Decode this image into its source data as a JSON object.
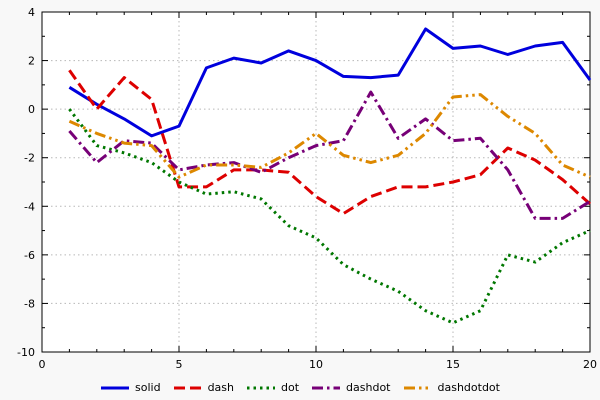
{
  "chart_data": {
    "type": "line",
    "title": "",
    "xlabel": "",
    "ylabel": "",
    "xlim": [
      0,
      20
    ],
    "ylim": [
      -10,
      4
    ],
    "x_ticks": [
      0,
      5,
      10,
      15,
      20
    ],
    "y_ticks": [
      4,
      2,
      0,
      -2,
      -4,
      -6,
      -8,
      -10
    ],
    "grid": true,
    "grid_color": "#b8b8b8",
    "plot_bg": "#ffffff",
    "figure_bg": "#f8f8f8",
    "border_color": "#000000",
    "legend_position": "bottom-center",
    "x": [
      1,
      2,
      3,
      4,
      5,
      6,
      7,
      8,
      9,
      10,
      11,
      12,
      13,
      14,
      15,
      16,
      17,
      18,
      19,
      20
    ],
    "series": [
      {
        "name": "solid",
        "color": "#0000dd",
        "dash": "solid",
        "values": [
          0.9,
          0.2,
          -0.4,
          -1.1,
          -0.7,
          1.7,
          2.1,
          1.9,
          2.4,
          2.0,
          1.35,
          1.3,
          1.4,
          3.3,
          2.5,
          2.6,
          2.25,
          2.6,
          2.75,
          1.2
        ]
      },
      {
        "name": "dash",
        "color": "#dd0000",
        "dash": "dash",
        "values": [
          1.6,
          0.0,
          1.3,
          0.4,
          -3.2,
          -3.2,
          -2.5,
          -2.5,
          -2.6,
          -3.6,
          -4.3,
          -3.6,
          -3.2,
          -3.2,
          -3.0,
          -2.7,
          -1.6,
          -2.1,
          -2.9,
          -3.9
        ]
      },
      {
        "name": "dot",
        "color": "#007700",
        "dash": "dot",
        "values": [
          0.0,
          -1.5,
          -1.8,
          -2.2,
          -3.0,
          -3.5,
          -3.4,
          -3.7,
          -4.8,
          -5.3,
          -6.4,
          -7.0,
          -7.5,
          -8.3,
          -8.8,
          -8.3,
          -6.0,
          -6.3,
          -5.5,
          -5.0
        ]
      },
      {
        "name": "dashdot",
        "color": "#770077",
        "dash": "dashdot",
        "values": [
          -0.9,
          -2.2,
          -1.3,
          -1.4,
          -2.5,
          -2.3,
          -2.2,
          -2.6,
          -2.0,
          -1.5,
          -1.3,
          0.7,
          -1.2,
          -0.4,
          -1.3,
          -1.2,
          -2.5,
          -4.5,
          -4.5,
          -3.8
        ]
      },
      {
        "name": "dashdotdot",
        "color": "#dd8800",
        "dash": "dashdotdot",
        "values": [
          -0.5,
          -1.0,
          -1.4,
          -1.5,
          -2.8,
          -2.3,
          -2.3,
          -2.4,
          -1.8,
          -1.0,
          -1.9,
          -2.2,
          -1.9,
          -1.0,
          0.5,
          0.6,
          -0.3,
          -1.0,
          -2.3,
          -2.8
        ]
      }
    ]
  }
}
